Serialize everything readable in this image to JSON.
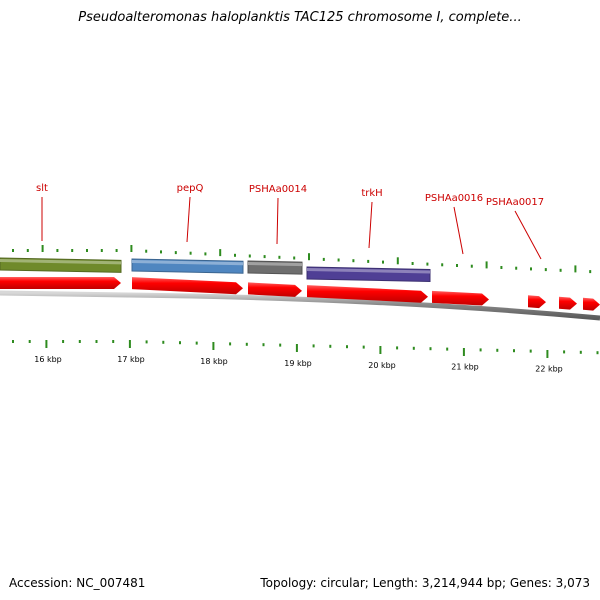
{
  "title": "Pseudoalteromonas haloplanktis TAC125 chromosome I, complete...",
  "map": {
    "genes_top": [
      {
        "name": "slt",
        "color": "#6f8a2a"
      },
      {
        "name": "pepQ",
        "color": "#4f86c0"
      },
      {
        "name": "PSHAa0014",
        "color": "#6e6e6e"
      },
      {
        "name": "trkH",
        "color": "#4f3f95"
      },
      {
        "name": "PSHAa0016",
        "color": null
      },
      {
        "name": "PSHAa0017",
        "color": null
      }
    ],
    "gene_label_color": "#cc0000",
    "cds_color": "#ff0000",
    "tick_color": "#2e8b1f",
    "backbone_color": "#8a8a8a",
    "scale_labels": [
      "16 kbp",
      "17 kbp",
      "18 kbp",
      "19 kbp",
      "20 kbp",
      "21 kbp",
      "22 kbp"
    ]
  },
  "footer": {
    "accession": "Accession: NC_007481",
    "topology": "Topology: circular; Length: 3,214,944 bp; Genes: 3,073"
  }
}
